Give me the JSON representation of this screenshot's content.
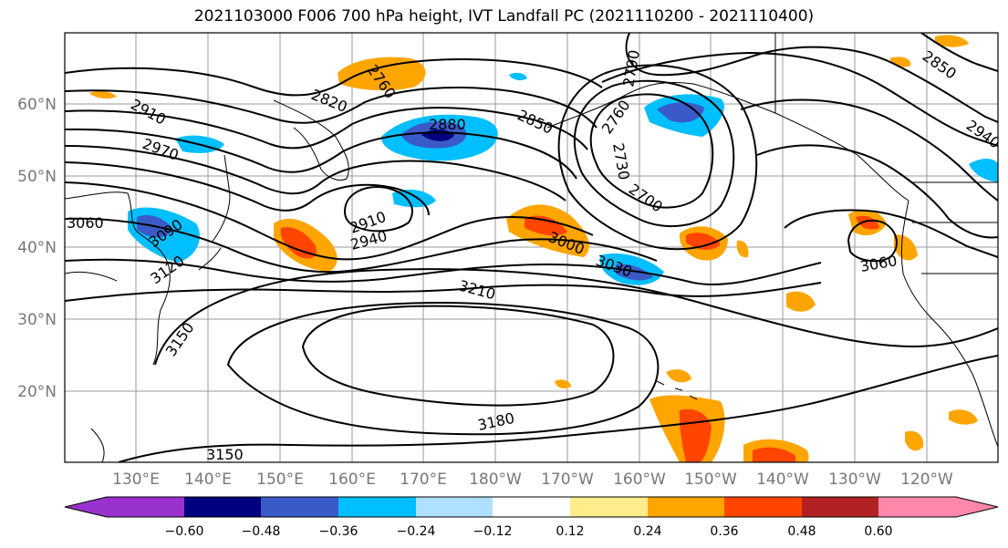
{
  "title": "2021103000 F006 700 hPa height, IVT Landfall PC (2021110200 - 2021110400)",
  "map": {
    "lat_labels": [
      "60°N",
      "50°N",
      "40°N",
      "30°N",
      "20°N"
    ],
    "lon_labels": [
      "130°E",
      "140°E",
      "150°E",
      "160°E",
      "170°E",
      "180°W",
      "170°W",
      "160°W",
      "150°W",
      "140°W",
      "130°W",
      "120°W"
    ],
    "gridlines": true,
    "contour_labels": [
      "2910",
      "2970",
      "2820",
      "2760",
      "2880",
      "2850",
      "2790",
      "2760",
      "2730",
      "2700",
      "2850",
      "2940",
      "3060",
      "3090",
      "3120",
      "2910",
      "2940",
      "3000",
      "3030",
      "3210",
      "3150",
      "3180",
      "3150",
      "3060"
    ]
  },
  "colorbar": {
    "colors": [
      "#9932cc",
      "#000080",
      "#3a5bc7",
      "#00bfff",
      "#b0e0ff",
      "#ffffff",
      "#ffec8b",
      "#ffa500",
      "#ff4500",
      "#b22222",
      "#ff88aa"
    ],
    "ticks": [
      "−0.60",
      "−0.48",
      "−0.36",
      "−0.24",
      "−0.12",
      "0.12",
      "0.24",
      "0.36",
      "0.48",
      "0.60"
    ]
  },
  "colors": {
    "negative_light": "#00bfff",
    "negative_mid": "#3a5bc7",
    "negative_dark": "#000080",
    "positive_light": "#ffec8b",
    "positive_mid": "#ffa500",
    "positive_dark": "#ff4500"
  }
}
